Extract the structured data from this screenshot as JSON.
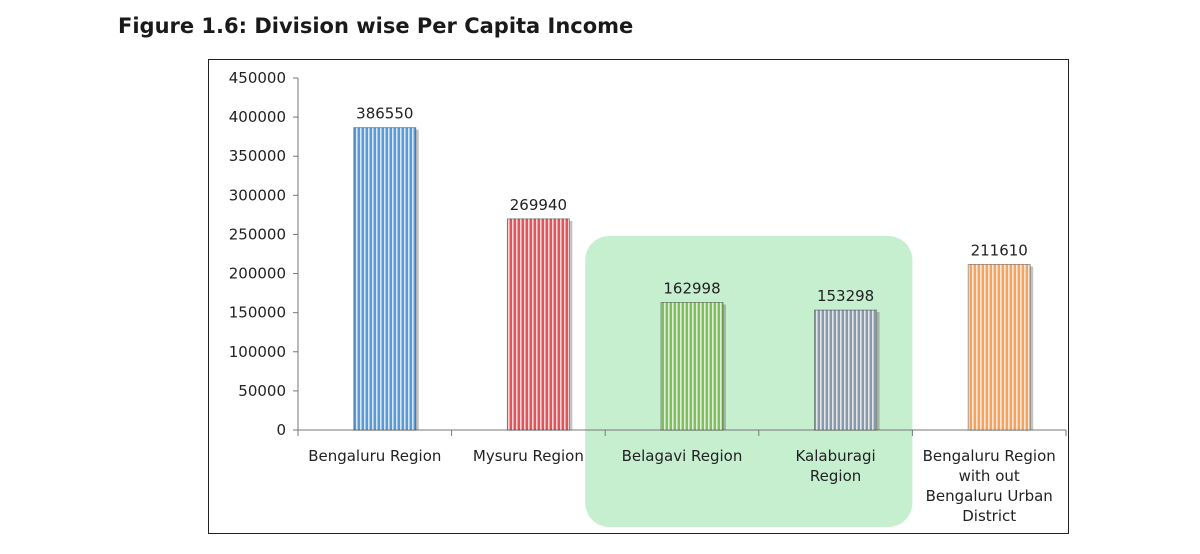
{
  "figure_title": "Figure 1.6: Division wise Per Capita Income",
  "colors": {
    "highlight": "#c6efd0",
    "bars": [
      "#5b9bd5",
      "#e0545c",
      "#7fbf5e",
      "#8a99a8",
      "#f4a460"
    ],
    "bar_stripe": "#ffffff"
  },
  "chart_data": {
    "type": "bar",
    "title": "",
    "xlabel": "",
    "ylabel": "",
    "categories": [
      [
        "Bengaluru Region"
      ],
      [
        "Mysuru  Region"
      ],
      [
        "Belagavi Region"
      ],
      [
        "Kalaburagi",
        "Region"
      ],
      [
        "Bengaluru Region",
        "with out",
        "Bengaluru Urban",
        "District"
      ]
    ],
    "values": [
      386550,
      269940,
      162998,
      153298,
      211610
    ],
    "data_labels": [
      "386550",
      "269940",
      "162998",
      "153298",
      "211610"
    ],
    "ylim": [
      0,
      450000
    ],
    "yticks": [
      0,
      50000,
      100000,
      150000,
      200000,
      250000,
      300000,
      350000,
      400000,
      450000
    ],
    "grid": false,
    "legend": "none",
    "highlighted_categories": [
      "Belagavi Region",
      "Kalaburagi Region"
    ]
  }
}
